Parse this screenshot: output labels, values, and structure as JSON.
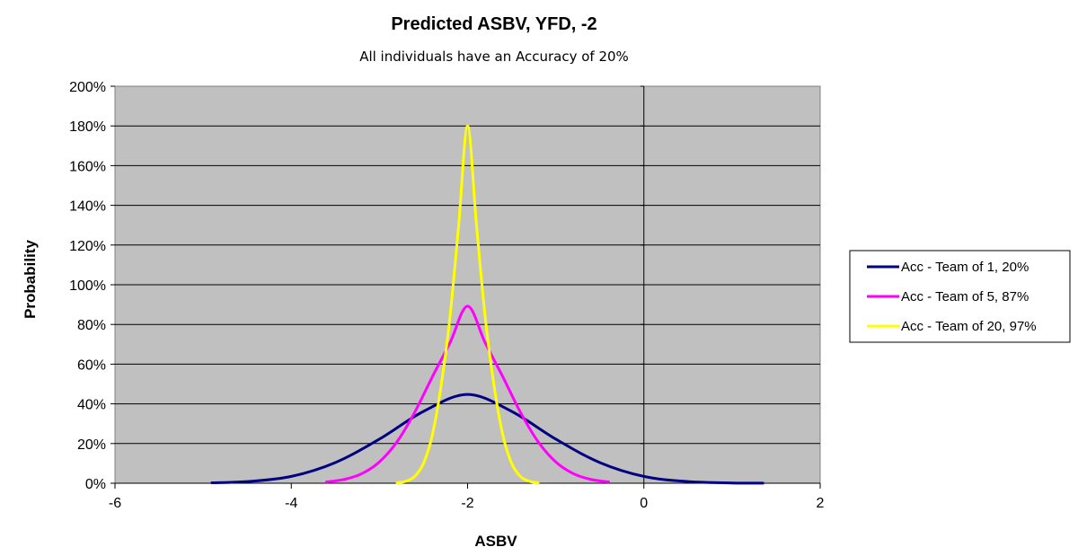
{
  "chart_data": {
    "type": "line",
    "title": "Predicted ASBV, YFD, -2",
    "subtitle": "All individuals have an Accuracy of 20%",
    "xlabel": "ASBV",
    "ylabel": "Probability",
    "xlim": [
      -6,
      2
    ],
    "ylim": [
      0,
      2
    ],
    "x_ticks": [
      -6,
      -4,
      -2,
      0,
      2
    ],
    "x_tick_labels": [
      "-6",
      "-4",
      "-2",
      "0",
      "2"
    ],
    "y_ticks": [
      0,
      0.2,
      0.4,
      0.6,
      0.8,
      1.0,
      1.2,
      1.4,
      1.6,
      1.8,
      2.0
    ],
    "y_tick_labels": [
      "0%",
      "20%",
      "40%",
      "60%",
      "80%",
      "100%",
      "120%",
      "140%",
      "160%",
      "180%",
      "200%"
    ],
    "grid": "horizontal",
    "plot_background": "#c0c0c0",
    "legend_position": "right",
    "series": [
      {
        "name": "Acc - Team of 1, 20%",
        "color": "#000080",
        "x": [
          -4.9,
          -4.5,
          -4.0,
          -3.5,
          -3.0,
          -2.5,
          -2.0,
          -1.5,
          -1.0,
          -0.5,
          0.0,
          0.5,
          1.0,
          1.35
        ],
        "y": [
          0.0024,
          0.0083,
          0.0346,
          0.1043,
          0.2224,
          0.362,
          0.4472,
          0.362,
          0.2224,
          0.1043,
          0.0346,
          0.0083,
          0.0014,
          0.0003
        ]
      },
      {
        "name": "Acc - Team of 5, 87%",
        "color": "#ff00ff",
        "x": [
          -3.6,
          -3.4,
          -3.2,
          -3.0,
          -2.8,
          -2.6,
          -2.4,
          -2.2,
          -2.0,
          -1.8,
          -1.6,
          -1.4,
          -1.2,
          -1.0,
          -0.8,
          -0.6,
          -0.4
        ],
        "y": [
          0.0067,
          0.0192,
          0.0485,
          0.1077,
          0.2093,
          0.3573,
          0.5361,
          0.7071,
          0.8921,
          0.7071,
          0.5361,
          0.3573,
          0.2093,
          0.1077,
          0.0485,
          0.0192,
          0.0067
        ]
      },
      {
        "name": "Acc - Team of 20, 97%",
        "color": "#ffff00",
        "x": [
          -2.8,
          -2.7,
          -2.6,
          -2.5,
          -2.4,
          -2.3,
          -2.2,
          -2.1,
          -2.0,
          -1.9,
          -1.8,
          -1.7,
          -1.6,
          -1.5,
          -1.4,
          -1.3,
          -1.2
        ],
        "y": [
          0.0024,
          0.0099,
          0.0343,
          0.1002,
          0.2426,
          0.492,
          0.8359,
          1.3062,
          1.8,
          1.3062,
          0.8359,
          0.492,
          0.2426,
          0.1002,
          0.0343,
          0.0099,
          0.0024
        ]
      }
    ]
  }
}
